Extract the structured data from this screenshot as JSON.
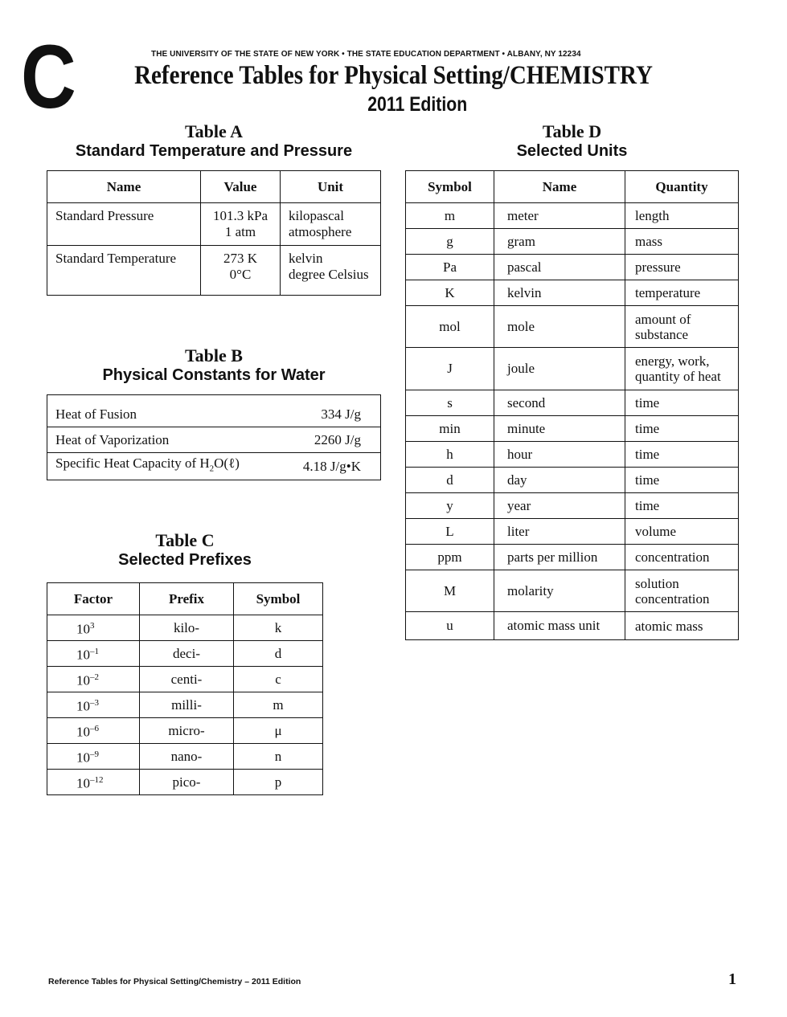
{
  "header": {
    "letter": "C",
    "institution": "THE UNIVERSITY OF THE STATE OF NEW YORK • THE STATE EDUCATION DEPARTMENT • ALBANY, NY  12234",
    "title": "Reference Tables for Physical Setting/CHEMISTRY",
    "edition": "2011 Edition"
  },
  "table_a": {
    "label": "Table A",
    "title": "Standard Temperature and Pressure",
    "columns": [
      "Name",
      "Value",
      "Unit"
    ],
    "rows": [
      {
        "name": "Standard Pressure",
        "value": [
          "101.3 kPa",
          "1 atm"
        ],
        "unit": [
          "kilopascal",
          "atmosphere"
        ]
      },
      {
        "name": "Standard Temperature",
        "value": [
          "273 K",
          "0°C"
        ],
        "unit": [
          "kelvin",
          "degree Celsius"
        ]
      }
    ]
  },
  "table_b": {
    "label": "Table B",
    "title": "Physical Constants for Water",
    "rows": [
      {
        "name": "Heat of Fusion",
        "value": "334 J/g"
      },
      {
        "name": "Heat of Vaporization",
        "value": "2260 J/g"
      },
      {
        "name_pre": "Specific Heat Capacity of H",
        "name_sub": "2",
        "name_post": "O(ℓ)",
        "value": "4.18 J/g•K"
      }
    ]
  },
  "table_c": {
    "label": "Table C",
    "title": "Selected Prefixes",
    "columns": [
      "Factor",
      "Prefix",
      "Symbol"
    ],
    "rows": [
      {
        "base": "10",
        "exp": "3",
        "prefix": "kilo-",
        "symbol": "k"
      },
      {
        "base": "10",
        "exp": "–1",
        "prefix": "deci-",
        "symbol": "d"
      },
      {
        "base": "10",
        "exp": "–2",
        "prefix": "centi-",
        "symbol": "c"
      },
      {
        "base": "10",
        "exp": "–3",
        "prefix": "milli-",
        "symbol": "m"
      },
      {
        "base": "10",
        "exp": "–6",
        "prefix": "micro-",
        "symbol": "μ"
      },
      {
        "base": "10",
        "exp": "–9",
        "prefix": "nano-",
        "symbol": "n"
      },
      {
        "base": "10",
        "exp": "–12",
        "prefix": "pico-",
        "symbol": "p"
      }
    ]
  },
  "table_d": {
    "label": "Table D",
    "title": "Selected Units",
    "columns": [
      "Symbol",
      "Name",
      "Quantity"
    ],
    "rows": [
      {
        "symbol": "m",
        "name": "meter",
        "quantity": [
          "length"
        ]
      },
      {
        "symbol": "g",
        "name": "gram",
        "quantity": [
          "mass"
        ]
      },
      {
        "symbol": "Pa",
        "name": "pascal",
        "quantity": [
          "pressure"
        ]
      },
      {
        "symbol": "K",
        "name": "kelvin",
        "quantity": [
          "temperature"
        ]
      },
      {
        "symbol": "mol",
        "name": "mole",
        "quantity": [
          "amount of",
          "substance"
        ]
      },
      {
        "symbol": "J",
        "name": "joule",
        "quantity": [
          "energy, work,",
          "quantity of heat"
        ]
      },
      {
        "symbol": "s",
        "name": "second",
        "quantity": [
          "time"
        ]
      },
      {
        "symbol": "min",
        "name": "minute",
        "quantity": [
          "time"
        ]
      },
      {
        "symbol": "h",
        "name": "hour",
        "quantity": [
          "time"
        ]
      },
      {
        "symbol": "d",
        "name": "day",
        "quantity": [
          "time"
        ]
      },
      {
        "symbol": "y",
        "name": "year",
        "quantity": [
          "time"
        ]
      },
      {
        "symbol": "L",
        "name": "liter",
        "quantity": [
          "volume"
        ]
      },
      {
        "symbol": "ppm",
        "name": "parts per million",
        "quantity": [
          "concentration"
        ]
      },
      {
        "symbol": "M",
        "name": "molarity",
        "quantity": [
          "solution",
          "concentration"
        ]
      },
      {
        "symbol": "u",
        "name": "atomic mass unit",
        "quantity": [
          "atomic mass"
        ]
      }
    ]
  },
  "footer": {
    "text": "Reference Tables for Physical Setting/Chemistry – 2011 Edition",
    "page_number": "1"
  }
}
